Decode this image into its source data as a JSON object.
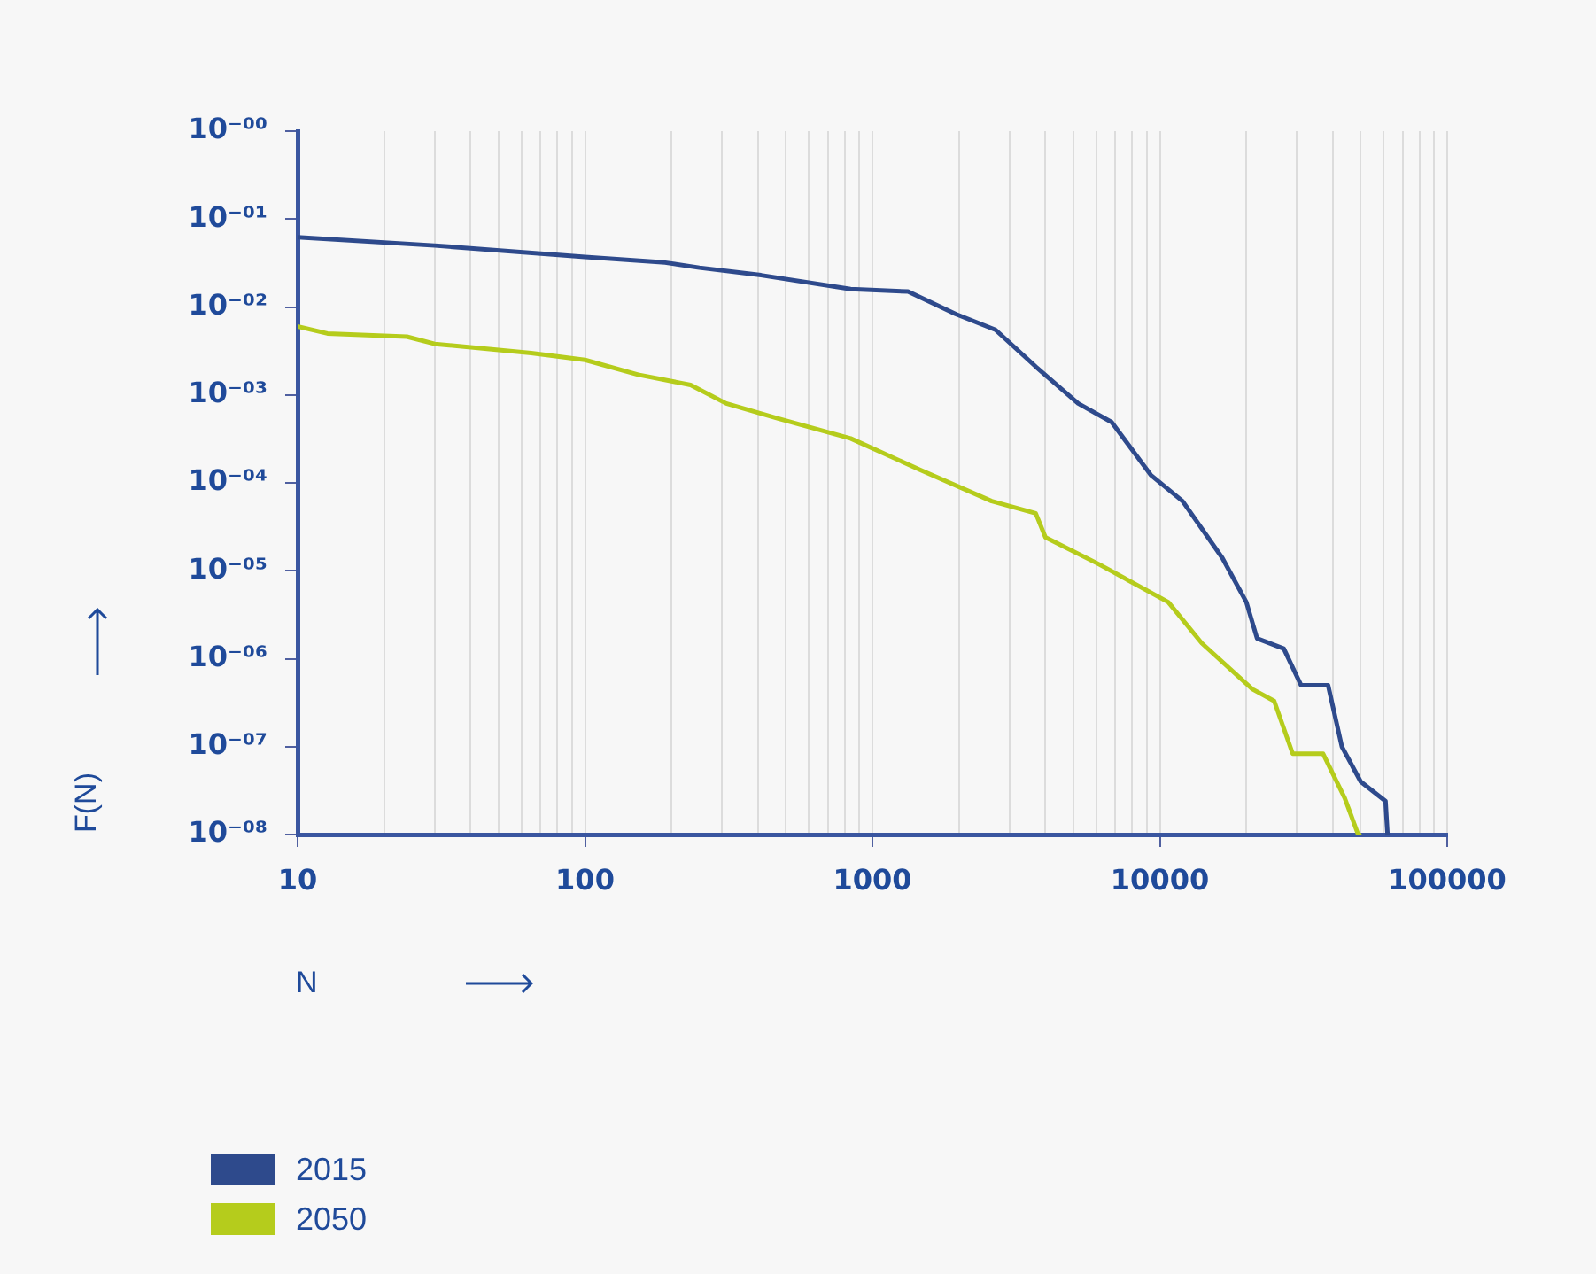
{
  "chart_data": {
    "type": "line",
    "xlabel": "N",
    "ylabel": "F(N)",
    "log": "xy",
    "grid": "x",
    "legend": "bottom left",
    "marker": "none",
    "line_style": "solid",
    "xlim": [
      10,
      100000
    ],
    "xticks": [
      10,
      {
        "value": 20,
        "label": null
      },
      {
        "value": 30,
        "label": null
      },
      {
        "value": 40,
        "label": null
      },
      {
        "value": 50,
        "label": null
      },
      {
        "value": 60,
        "label": null
      },
      {
        "value": 70,
        "label": null
      },
      {
        "value": 80,
        "label": null
      },
      {
        "value": 90,
        "label": null
      },
      100,
      {
        "value": 200,
        "label": null
      },
      {
        "value": 300,
        "label": null
      },
      {
        "value": 400,
        "label": null
      },
      {
        "value": 500,
        "label": null
      },
      {
        "value": 600,
        "label": null
      },
      {
        "value": 700,
        "label": null
      },
      {
        "value": 800,
        "label": null
      },
      {
        "value": 900,
        "label": null
      },
      1000,
      {
        "value": 2000,
        "label": null
      },
      {
        "value": 3000,
        "label": null
      },
      {
        "value": 4000,
        "label": null
      },
      {
        "value": 5000,
        "label": null
      },
      {
        "value": 6000,
        "label": null
      },
      {
        "value": 7000,
        "label": null
      },
      {
        "value": 8000,
        "label": null
      },
      {
        "value": 9000,
        "label": null
      },
      10000,
      {
        "value": 20000,
        "label": null
      },
      {
        "value": 30000,
        "label": null
      },
      {
        "value": 40000,
        "label": null
      },
      {
        "value": 50000,
        "label": null
      },
      {
        "value": 60000,
        "label": null
      },
      {
        "value": 70000,
        "label": null
      },
      {
        "value": 80000,
        "label": null
      },
      {
        "value": 90000,
        "label": null
      },
      100000
    ],
    "ylim": [
      1e-08,
      1
    ],
    "yticks": [
      {
        "value": 1,
        "label": "10⁻⁰⁰"
      },
      {
        "value": 0.1,
        "label": "10⁻⁰¹"
      },
      {
        "value": 0.01,
        "label": "10⁻⁰²"
      },
      {
        "value": 0.001,
        "label": "10⁻⁰³"
      },
      {
        "value": 0.0001,
        "label": "10⁻⁰⁴"
      },
      {
        "value": 1e-05,
        "label": "10⁻⁰⁵"
      },
      {
        "value": 1e-06,
        "label": "10⁻⁰⁶"
      },
      {
        "value": 1e-07,
        "label": "10⁻⁰⁷"
      },
      {
        "value": 1e-08,
        "label": "10⁻⁰⁸"
      }
    ],
    "series": [
      {
        "name": "2015",
        "color": "#2e4a8c",
        "x": [
          10,
          30,
          100,
          190,
          250,
          410,
          840,
          1330,
          1950,
          2680,
          3700,
          5200,
          6800,
          9300,
          12000,
          16500,
          20000,
          21800,
          27000,
          31000,
          38500,
          43000,
          50000,
          61000,
          62000
        ],
        "values": [
          0.062,
          0.05,
          0.037,
          0.032,
          0.028,
          0.023,
          0.016,
          0.015,
          0.0083,
          0.0055,
          0.0021,
          0.0008,
          0.00049,
          0.000123,
          6.2e-05,
          1.4e-05,
          4.4e-06,
          1.7e-06,
          1.3e-06,
          5e-07,
          5e-07,
          1e-07,
          4e-08,
          2.4e-08,
          1e-08
        ]
      },
      {
        "name": "2050",
        "color": "#b5cc1c",
        "x": [
          10,
          12.7,
          24,
          30,
          65,
          100,
          153,
          233,
          310,
          470,
          840,
          1470,
          2600,
          3700,
          4000,
          6100,
          10700,
          14000,
          21000,
          25000,
          29000,
          37000,
          44000,
          49000,
          49500
        ],
        "values": [
          0.006,
          0.005,
          0.0046,
          0.0038,
          0.003,
          0.0025,
          0.0017,
          0.0013,
          0.0008,
          0.00054,
          0.00032,
          0.00014,
          6.2e-05,
          4.5e-05,
          2.4e-05,
          1.2e-05,
          4.4e-06,
          1.5e-06,
          4.5e-07,
          3.3e-07,
          8.3e-08,
          8.3e-08,
          2.6e-08,
          1e-08,
          1e-08
        ]
      }
    ]
  }
}
